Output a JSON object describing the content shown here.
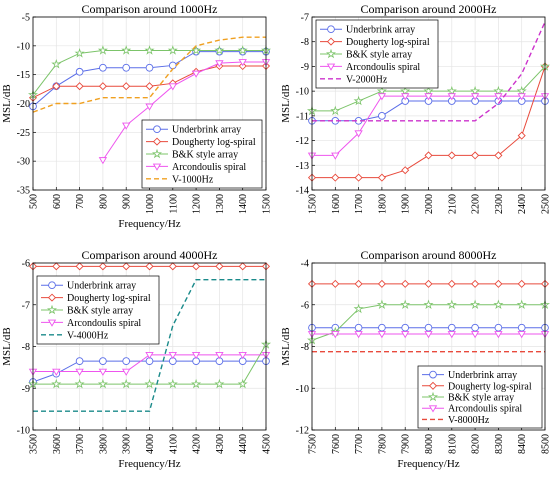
{
  "chart_data": [
    {
      "type": "line",
      "title": "Comparison around 1000Hz",
      "xlabel": "Frequency/Hz",
      "ylabel": "MSL/dB",
      "xlim": [
        500,
        1500
      ],
      "ylim": [
        -35,
        -5
      ],
      "xticks": [
        500,
        600,
        700,
        800,
        900,
        1000,
        1100,
        1200,
        1300,
        1400,
        1500
      ],
      "yticks": [
        -35,
        -30,
        -25,
        -20,
        -15,
        -10,
        -5
      ],
      "xtick_rotation": 90,
      "grid": true,
      "legend_position": "lower-right",
      "series": [
        {
          "name": "Underbrink array",
          "color": "#5b6ee8",
          "marker": "circle",
          "dash": "solid",
          "x": [
            500,
            600,
            700,
            800,
            900,
            1000,
            1100,
            1200,
            1300,
            1400,
            1500
          ],
          "y": [
            -20.5,
            -17,
            -14.5,
            -13.8,
            -13.8,
            -13.8,
            -13.4,
            -11,
            -11,
            -11,
            -11
          ]
        },
        {
          "name": "Dougherty log-spiral",
          "color": "#e84a3c",
          "marker": "diamond",
          "dash": "solid",
          "x": [
            500,
            600,
            700,
            800,
            900,
            1000,
            1100,
            1200,
            1300,
            1400,
            1500
          ],
          "y": [
            -19,
            -17,
            -17,
            -17,
            -17,
            -17,
            -16.5,
            -14.5,
            -13.5,
            -13.5,
            -13.5
          ]
        },
        {
          "name": "B&K style array",
          "color": "#7cc46a",
          "marker": "star",
          "dash": "solid",
          "x": [
            500,
            600,
            700,
            800,
            900,
            1000,
            1100,
            1200,
            1300,
            1400,
            1500
          ],
          "y": [
            -18.5,
            -13.2,
            -11.3,
            -10.8,
            -10.8,
            -10.8,
            -10.8,
            -10.8,
            -10.8,
            -10.8,
            -10.8
          ]
        },
        {
          "name": "Arcondoulis spiral",
          "color": "#ee55ee",
          "marker": "triangle-down",
          "dash": "solid",
          "x": [
            800,
            900,
            1000,
            1100,
            1200,
            1300,
            1400,
            1500
          ],
          "y": [
            -29.8,
            -23.8,
            -20.5,
            -17,
            -14.8,
            -13,
            -12.8,
            -12.8
          ]
        },
        {
          "name": "V-1000Hz",
          "color": "#f0a020",
          "marker": "none",
          "dash": "dashed",
          "x": [
            500,
            600,
            700,
            800,
            900,
            1000,
            1100,
            1200,
            1300,
            1400,
            1500
          ],
          "y": [
            -21.5,
            -20,
            -20,
            -19,
            -19,
            -19,
            -14,
            -10,
            -9,
            -8.5,
            -8.5
          ]
        }
      ]
    },
    {
      "type": "line",
      "title": "Comparison around 2000Hz",
      "xlabel": "",
      "ylabel": "MSL/dB",
      "xlim": [
        1500,
        2500
      ],
      "ylim": [
        -14,
        -7
      ],
      "xticks": [
        1500,
        1600,
        1700,
        1800,
        1900,
        2000,
        2100,
        2200,
        2300,
        2400,
        2500
      ],
      "yticks": [
        -14,
        -13,
        -12,
        -11,
        -10,
        -9,
        -8,
        -7
      ],
      "xtick_rotation": 90,
      "grid": true,
      "legend_position": "top-left",
      "series": [
        {
          "name": "Underbrink array",
          "color": "#5b6ee8",
          "marker": "circle",
          "dash": "solid",
          "x": [
            1500,
            1600,
            1700,
            1800,
            1900,
            2000,
            2100,
            2200,
            2300,
            2400,
            2500
          ],
          "y": [
            -11.2,
            -11.2,
            -11.2,
            -11,
            -10.4,
            -10.4,
            -10.4,
            -10.4,
            -10.4,
            -10.4,
            -10.4
          ]
        },
        {
          "name": "Dougherty log-spiral",
          "color": "#e84a3c",
          "marker": "diamond",
          "dash": "solid",
          "x": [
            1500,
            1600,
            1700,
            1800,
            1900,
            2000,
            2100,
            2200,
            2300,
            2400,
            2500
          ],
          "y": [
            -13.5,
            -13.5,
            -13.5,
            -13.5,
            -13.2,
            -12.6,
            -12.6,
            -12.6,
            -12.6,
            -11.8,
            -9.0
          ]
        },
        {
          "name": "B&K style array",
          "color": "#7cc46a",
          "marker": "star",
          "dash": "solid",
          "x": [
            1500,
            1600,
            1700,
            1800,
            1900,
            2000,
            2100,
            2200,
            2300,
            2400,
            2500
          ],
          "y": [
            -10.8,
            -10.8,
            -10.4,
            -10,
            -10,
            -10,
            -10,
            -10,
            -10,
            -10,
            -9.0
          ]
        },
        {
          "name": "Arcondoulis spiral",
          "color": "#ee55ee",
          "marker": "triangle-down",
          "dash": "solid",
          "x": [
            1500,
            1600,
            1700,
            1800,
            1900,
            2000,
            2100,
            2200,
            2300,
            2400,
            2500
          ],
          "y": [
            -12.6,
            -12.6,
            -11.7,
            -10.2,
            -10.2,
            -10.2,
            -10.2,
            -10.2,
            -10.2,
            -10.2,
            -10.2
          ]
        },
        {
          "name": "V-2000Hz",
          "color": "#cc33cc",
          "marker": "none",
          "dash": "dashed",
          "x": [
            1500,
            1600,
            1700,
            1800,
            1900,
            2000,
            2100,
            2200,
            2300,
            2400,
            2500
          ],
          "y": [
            -11.2,
            -11.2,
            -11.2,
            -11.2,
            -11.2,
            -11.2,
            -11.2,
            -11.2,
            -10.5,
            -9.3,
            -7.2
          ]
        }
      ]
    },
    {
      "type": "line",
      "title": "Comparison around 4000Hz",
      "xlabel": "Frequency/Hz",
      "ylabel": "MSL/dB",
      "xlim": [
        3500,
        4500
      ],
      "ylim": [
        -10,
        -6
      ],
      "xticks": [
        3500,
        3600,
        3700,
        3800,
        3900,
        4000,
        4100,
        4200,
        4300,
        4400,
        4500
      ],
      "yticks": [
        -10,
        -9,
        -8,
        -7,
        -6
      ],
      "xtick_rotation": 90,
      "grid": true,
      "legend_position": "upper-left",
      "series": [
        {
          "name": "Underbrink array",
          "color": "#5b6ee8",
          "marker": "circle",
          "dash": "solid",
          "x": [
            3500,
            3600,
            3700,
            3800,
            3900,
            4000,
            4100,
            4200,
            4300,
            4400,
            4500
          ],
          "y": [
            -8.85,
            -8.65,
            -8.35,
            -8.35,
            -8.35,
            -8.35,
            -8.35,
            -8.35,
            -8.35,
            -8.35,
            -8.35
          ]
        },
        {
          "name": "Dougherty log-spiral",
          "color": "#e84a3c",
          "marker": "diamond",
          "dash": "solid",
          "x": [
            3500,
            3600,
            3700,
            3800,
            3900,
            4000,
            4100,
            4200,
            4300,
            4400,
            4500
          ],
          "y": [
            -6.08,
            -6.08,
            -6.08,
            -6.08,
            -6.08,
            -6.08,
            -6.08,
            -6.08,
            -6.08,
            -6.08,
            -6.08
          ]
        },
        {
          "name": "B&K style array",
          "color": "#7cc46a",
          "marker": "star",
          "dash": "solid",
          "x": [
            3500,
            3600,
            3700,
            3800,
            3900,
            4000,
            4100,
            4200,
            4300,
            4400,
            4500
          ],
          "y": [
            -8.9,
            -8.9,
            -8.9,
            -8.9,
            -8.9,
            -8.9,
            -8.9,
            -8.9,
            -8.9,
            -8.9,
            -7.95
          ]
        },
        {
          "name": "Arcondoulis spiral",
          "color": "#ee55ee",
          "marker": "triangle-down",
          "dash": "solid",
          "x": [
            3500,
            3600,
            3700,
            3800,
            3900,
            4000,
            4100,
            4200,
            4300,
            4400,
            4500
          ],
          "y": [
            -8.6,
            -8.6,
            -8.6,
            -8.6,
            -8.6,
            -8.2,
            -8.2,
            -8.2,
            -8.2,
            -8.2,
            -8.2
          ]
        },
        {
          "name": "V-4000Hz",
          "color": "#1a8a8a",
          "marker": "none",
          "dash": "dashed",
          "x": [
            3500,
            3600,
            3700,
            3800,
            3900,
            4000,
            4100,
            4200,
            4300,
            4400,
            4500
          ],
          "y": [
            -9.55,
            -9.55,
            -9.55,
            -9.55,
            -9.55,
            -9.55,
            -7.5,
            -6.4,
            -6.4,
            -6.4,
            -6.4
          ]
        }
      ]
    },
    {
      "type": "line",
      "title": "Comparison around 8000Hz",
      "xlabel": "Frequency/Hz",
      "ylabel": "MSL/dB",
      "xlim": [
        7500,
        8500
      ],
      "ylim": [
        -12,
        -4
      ],
      "xticks": [
        7500,
        7600,
        7700,
        7800,
        7900,
        8000,
        8100,
        8200,
        8300,
        8400,
        8500
      ],
      "yticks": [
        -12,
        -10,
        -8,
        -6,
        -4
      ],
      "xtick_rotation": 90,
      "grid": true,
      "legend_position": "lower-right",
      "series": [
        {
          "name": "Underbrink array",
          "color": "#5b6ee8",
          "marker": "circle",
          "dash": "solid",
          "x": [
            7500,
            7600,
            7700,
            7800,
            7900,
            8000,
            8100,
            8200,
            8300,
            8400,
            8500
          ],
          "y": [
            -7.1,
            -7.1,
            -7.1,
            -7.1,
            -7.1,
            -7.1,
            -7.1,
            -7.1,
            -7.1,
            -7.1,
            -7.1
          ]
        },
        {
          "name": "Dougherty log-spiral",
          "color": "#e84a3c",
          "marker": "diamond",
          "dash": "solid",
          "x": [
            7500,
            7600,
            7700,
            7800,
            7900,
            8000,
            8100,
            8200,
            8300,
            8400,
            8500
          ],
          "y": [
            -5.0,
            -5.0,
            -5.0,
            -5.0,
            -5.0,
            -5.0,
            -5.0,
            -5.0,
            -5.0,
            -5.0,
            -5.0
          ]
        },
        {
          "name": "B&K style array",
          "color": "#7cc46a",
          "marker": "star",
          "dash": "solid",
          "x": [
            7500,
            7600,
            7700,
            7800,
            7900,
            8000,
            8100,
            8200,
            8300,
            8400,
            8500
          ],
          "y": [
            -7.7,
            -7.3,
            -6.2,
            -6.0,
            -6.0,
            -6.0,
            -6.0,
            -6.0,
            -6.0,
            -6.0,
            -6.0
          ]
        },
        {
          "name": "Arcondoulis spiral",
          "color": "#ee55ee",
          "marker": "triangle-down",
          "dash": "solid",
          "x": [
            7500,
            7600,
            7700,
            7800,
            7900,
            8000,
            8100,
            8200,
            8300,
            8400,
            8500
          ],
          "y": [
            -7.4,
            -7.4,
            -7.4,
            -7.4,
            -7.4,
            -7.4,
            -7.4,
            -7.4,
            -7.4,
            -7.4,
            -7.4
          ]
        },
        {
          "name": "V-8000Hz",
          "color": "#e84a3c",
          "marker": "none",
          "dash": "dashed",
          "x": [
            7500,
            8500
          ],
          "y": [
            -8.25,
            -8.25
          ]
        }
      ]
    }
  ]
}
